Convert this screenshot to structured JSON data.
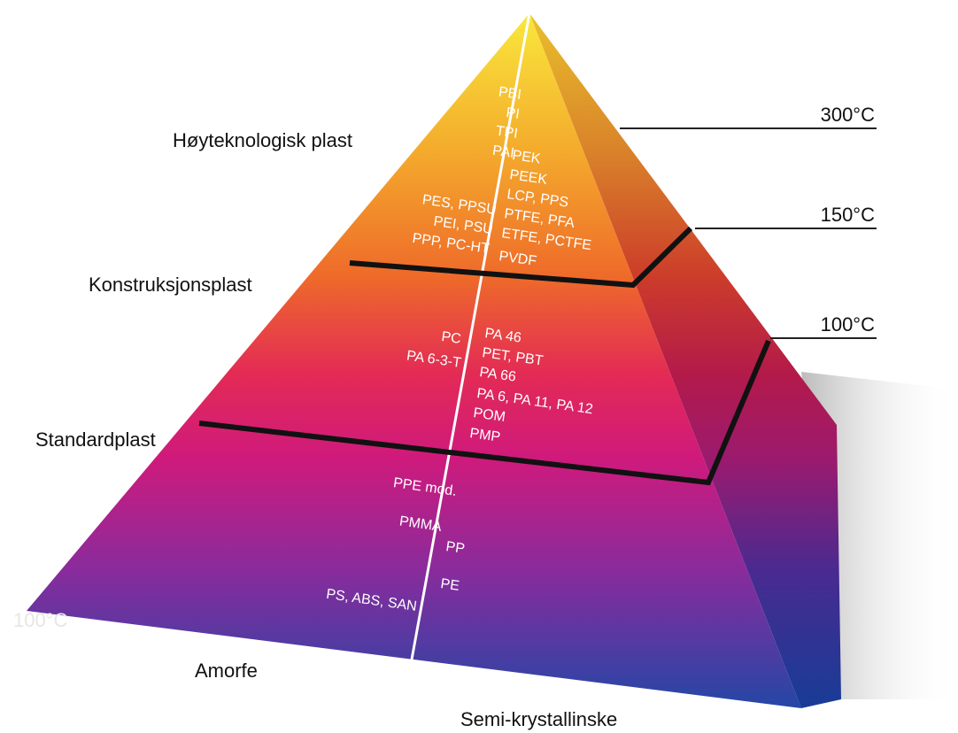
{
  "levels": [
    {
      "name": "Høyteknologisk plast",
      "amorphous": [
        "PBI",
        "PI",
        "TPI",
        "PAI",
        "PES, PPSU",
        "PEI, PSU",
        "PPP, PC-HT"
      ],
      "semi_crystalline": [
        "PEK",
        "PEEK",
        "LCP, PPS",
        "PTFE, PFA",
        "ETFE, PCTFE",
        "PVDF"
      ]
    },
    {
      "name": "Konstruksjonsplast",
      "amorphous": [
        "PC",
        "PA 6-3-T"
      ],
      "semi_crystalline": [
        "PA 46",
        "PET, PBT",
        "PA 66",
        "PA 6, PA 11, PA 12",
        "POM",
        "PMP"
      ]
    },
    {
      "name": "Standardplast",
      "amorphous": [
        "PPE mod.",
        "PMMA",
        "PS, ABS, SAN"
      ],
      "semi_crystalline": [
        "PP",
        "PE"
      ]
    }
  ],
  "temperatures": [
    "300°C",
    "150°C",
    "100°C"
  ],
  "bottom_labels": {
    "amorphous": "Amorfe",
    "semi_crystalline": "Semi-krystallinske"
  },
  "faded_label": "100°C"
}
